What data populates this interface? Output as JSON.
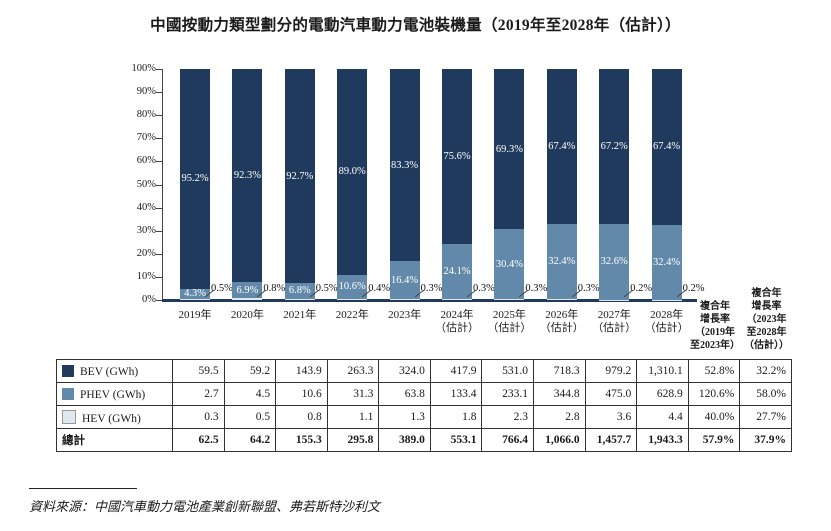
{
  "title": "中國按動力類型劃分的電動汽車動力電池裝機量（2019年至2028年（估計））",
  "source": "資料來源：中國汽車動力電池產業創新聯盟、弗若斯特沙利文",
  "colors": {
    "bev": "#1f3a5c",
    "phev": "#6289a9",
    "hev": "#dfe8f1",
    "axis": "#1f3a5c"
  },
  "chart_data": {
    "type": "bar",
    "stacked": true,
    "unit": "%",
    "title": "中國按動力類型劃分的電動汽車動力電池裝機量（2019年至2028年（估計））",
    "xlabel": "",
    "ylabel": "",
    "ylim": [
      0,
      100
    ],
    "grid": false,
    "y_ticks": [
      "100%",
      "90%",
      "80%",
      "70%",
      "60%",
      "50%",
      "40%",
      "30%",
      "20%",
      "10%",
      "0%"
    ],
    "categories": [
      {
        "label": "2019年",
        "sub": ""
      },
      {
        "label": "2020年",
        "sub": ""
      },
      {
        "label": "2021年",
        "sub": ""
      },
      {
        "label": "2022年",
        "sub": ""
      },
      {
        "label": "2023年",
        "sub": ""
      },
      {
        "label": "2024年",
        "sub": "（估計）"
      },
      {
        "label": "2025年",
        "sub": "（估計）"
      },
      {
        "label": "2026年",
        "sub": "（估計）"
      },
      {
        "label": "2027年",
        "sub": "（估計）"
      },
      {
        "label": "2028年",
        "sub": "（估計）"
      }
    ],
    "series": [
      {
        "name": "BEV",
        "color": "#1f3a5c",
        "values": [
          95.2,
          92.3,
          92.7,
          89.0,
          83.3,
          75.6,
          69.3,
          67.4,
          67.2,
          67.4
        ]
      },
      {
        "name": "PHEV",
        "color": "#6289a9",
        "values": [
          4.3,
          6.9,
          6.8,
          10.6,
          16.4,
          24.1,
          30.4,
          32.4,
          32.6,
          32.4
        ]
      },
      {
        "name": "HEV",
        "color": "#dfe8f1",
        "values": [
          0.5,
          0.8,
          0.5,
          0.4,
          0.3,
          0.3,
          0.3,
          0.3,
          0.2,
          0.2
        ]
      }
    ]
  },
  "cagr_headers": [
    {
      "lines": [
        "複合年",
        "增長率",
        "（2019年",
        "至2023年）"
      ]
    },
    {
      "lines": [
        "複合年",
        "增長率",
        "（2023年",
        "至2028年",
        "（估計））"
      ]
    }
  ],
  "table": {
    "rows": [
      {
        "label": "BEV (GWh)",
        "swatch": "#1f3a5c",
        "bold": false,
        "values": [
          "59.5",
          "59.2",
          "143.9",
          "263.3",
          "324.0",
          "417.9",
          "531.0",
          "718.3",
          "979.2",
          "1,310.1",
          "52.8%",
          "32.2%"
        ]
      },
      {
        "label": "PHEV (GWh)",
        "swatch": "#6289a9",
        "bold": false,
        "values": [
          "2.7",
          "4.5",
          "10.6",
          "31.3",
          "63.8",
          "133.4",
          "233.1",
          "344.8",
          "475.0",
          "628.9",
          "120.6%",
          "58.0%"
        ]
      },
      {
        "label": "HEV (GWh)",
        "swatch": "#dfe8f1",
        "bold": false,
        "values": [
          "0.3",
          "0.5",
          "0.8",
          "1.1",
          "1.3",
          "1.8",
          "2.3",
          "2.8",
          "3.6",
          "4.4",
          "40.0%",
          "27.7%"
        ]
      },
      {
        "label": "總計",
        "swatch": null,
        "bold": true,
        "values": [
          "62.5",
          "64.2",
          "155.3",
          "295.8",
          "389.0",
          "553.1",
          "766.4",
          "1,066.0",
          "1,457.7",
          "1,943.3",
          "57.9%",
          "37.9%"
        ]
      }
    ]
  }
}
